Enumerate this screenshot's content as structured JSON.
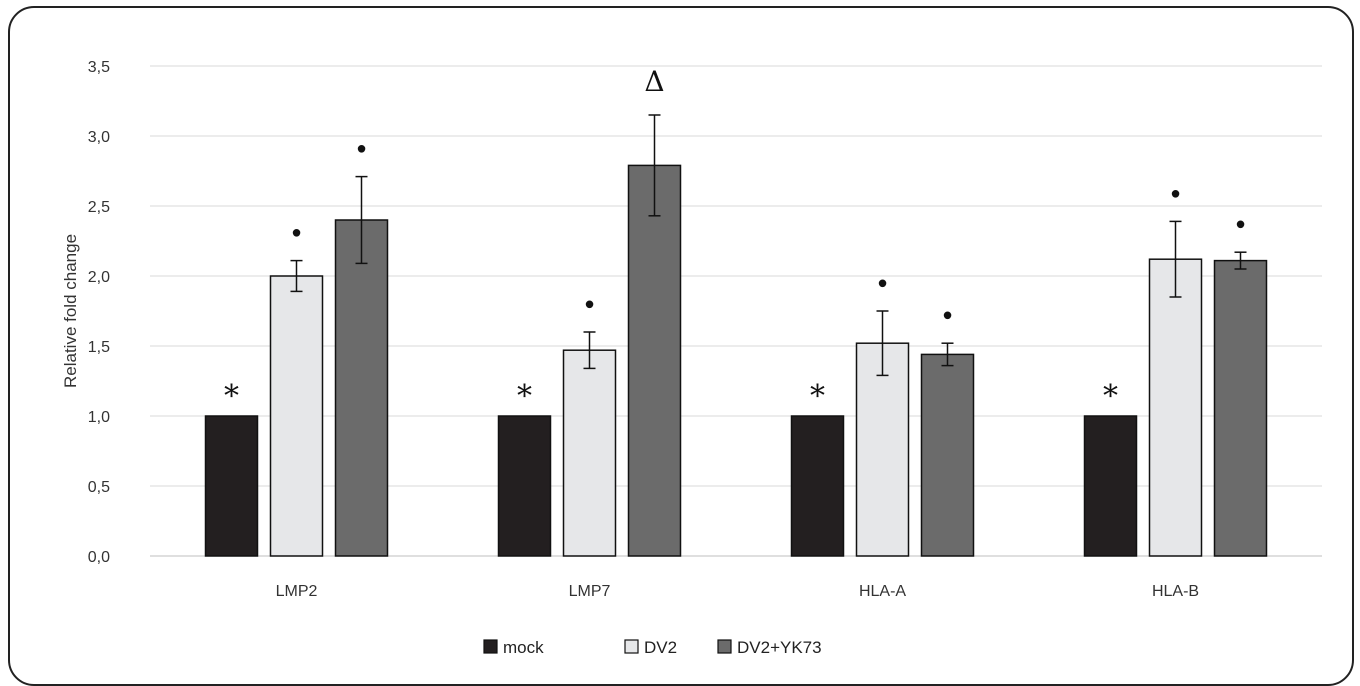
{
  "chart_data": {
    "type": "bar",
    "title": "",
    "xlabel": "",
    "ylabel": "Relative fold change",
    "ylim": [
      0,
      3.5
    ],
    "yticks": [
      "0,0",
      "0,5",
      "1,0",
      "1,5",
      "2,0",
      "2,5",
      "3,0",
      "3,5"
    ],
    "grid": true,
    "legend_position": "bottom",
    "categories": [
      "LMP2",
      "LMP7",
      "HLA-A",
      "HLA-B"
    ],
    "series": [
      {
        "name": "mock",
        "color": "#231f20",
        "values": [
          1.0,
          1.0,
          1.0,
          1.0
        ],
        "errors": [
          0.0,
          0.0,
          0.0,
          0.0
        ],
        "marks": [
          "*",
          "*",
          "*",
          "*"
        ]
      },
      {
        "name": "DV2",
        "color": "#e6e7e9",
        "values": [
          2.0,
          1.47,
          1.52,
          2.12
        ],
        "errors": [
          0.11,
          0.13,
          0.23,
          0.27
        ],
        "marks": [
          "•",
          "•",
          "•",
          "•"
        ]
      },
      {
        "name": "DV2+YK73",
        "color": "#6b6b6b",
        "values": [
          2.4,
          2.79,
          1.44,
          2.11
        ],
        "errors": [
          0.31,
          0.36,
          0.08,
          0.06
        ],
        "marks": [
          "•",
          "Δ",
          "•",
          "•"
        ]
      }
    ]
  }
}
